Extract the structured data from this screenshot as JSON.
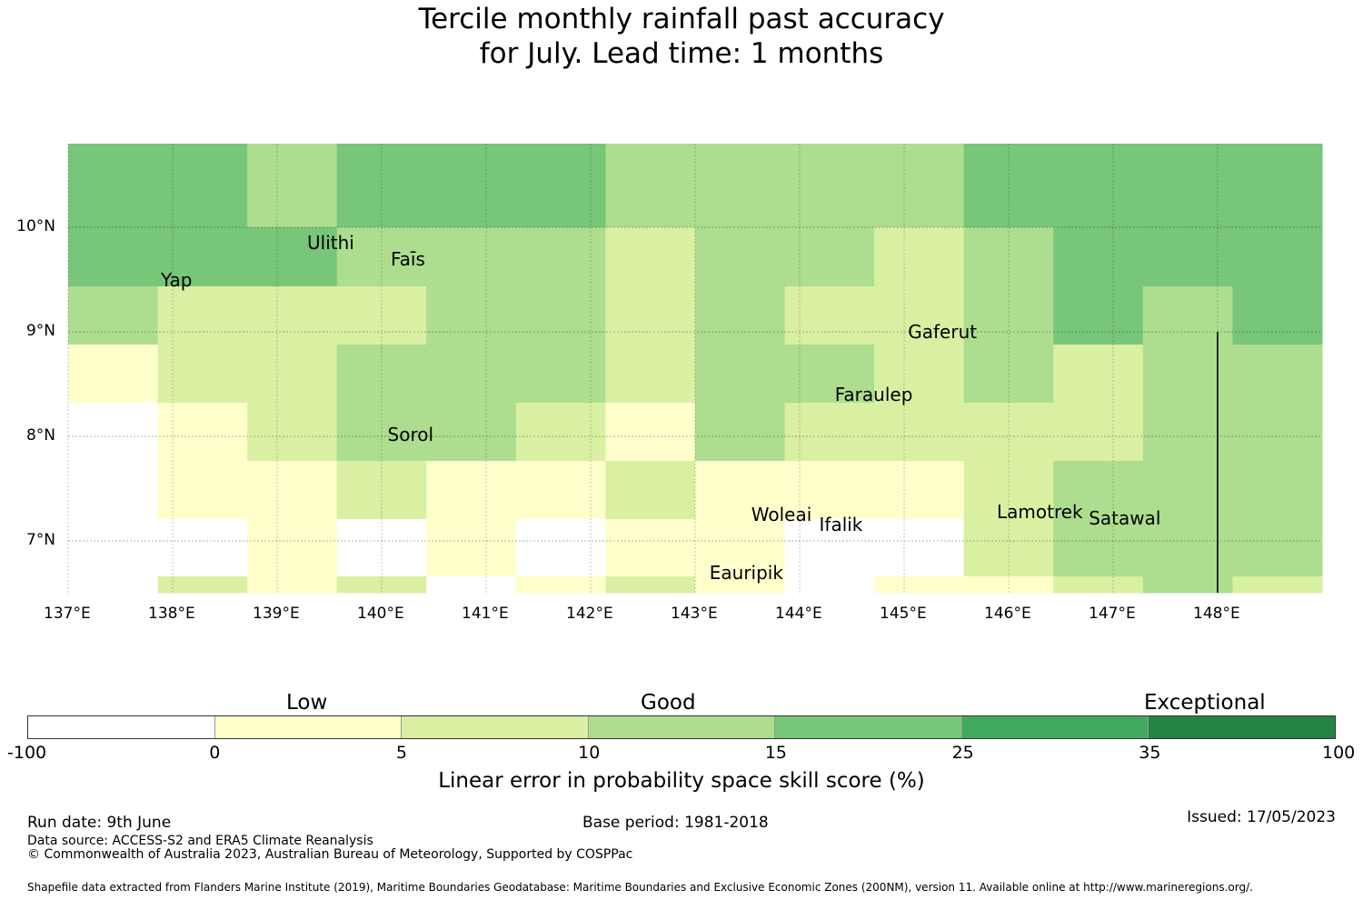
{
  "title": {
    "line1": "Tercile monthly rainfall past accuracy",
    "line2": "for July. Lead time: 1 months"
  },
  "map": {
    "lon_range": [
      137,
      149
    ],
    "lat_range": [
      6.5,
      10.8
    ],
    "lon_ticks": [
      "137°E",
      "138°E",
      "139°E",
      "140°E",
      "141°E",
      "142°E",
      "143°E",
      "144°E",
      "145°E",
      "146°E",
      "147°E",
      "148°E"
    ],
    "lat_ticks": [
      "10°N",
      "9°N",
      "8°N",
      "7°N"
    ],
    "grid_cols": 14,
    "grid_rows": 8,
    "cells": [
      [
        4,
        4,
        3,
        4,
        4,
        4,
        3,
        3,
        3,
        3,
        4,
        4,
        4,
        4
      ],
      [
        4,
        4,
        4,
        3,
        3,
        3,
        2,
        3,
        3,
        2,
        3,
        4,
        4,
        4
      ],
      [
        3,
        2,
        2,
        2,
        3,
        3,
        2,
        3,
        2,
        2,
        3,
        4,
        3,
        4
      ],
      [
        1,
        2,
        2,
        3,
        3,
        3,
        2,
        3,
        3,
        2,
        3,
        2,
        3,
        3
      ],
      [
        0,
        1,
        2,
        3,
        3,
        2,
        1,
        3,
        2,
        2,
        2,
        2,
        3,
        3
      ],
      [
        0,
        1,
        1,
        2,
        1,
        1,
        2,
        1,
        1,
        1,
        2,
        3,
        3,
        3
      ],
      [
        0,
        0,
        1,
        0,
        1,
        0,
        1,
        1,
        0,
        0,
        2,
        3,
        3,
        3
      ],
      [
        0,
        2,
        1,
        2,
        0,
        1,
        2,
        1,
        0,
        1,
        1,
        2,
        3,
        2
      ]
    ],
    "places": [
      {
        "name": "Yap",
        "lon": 138.2,
        "lat": 9.5
      },
      {
        "name": "Ulithi",
        "lon": 139.6,
        "lat": 9.85
      },
      {
        "name": "Faīs",
        "lon": 140.4,
        "lat": 9.7
      },
      {
        "name": "Gaferut",
        "lon": 145.35,
        "lat": 9.0
      },
      {
        "name": "Faraulep",
        "lon": 144.65,
        "lat": 8.4
      },
      {
        "name": "Sorol",
        "lon": 140.37,
        "lat": 8.02
      },
      {
        "name": "Woleai",
        "lon": 143.85,
        "lat": 7.25
      },
      {
        "name": "Ifalik",
        "lon": 144.5,
        "lat": 7.16
      },
      {
        "name": "Lamotrek",
        "lon": 146.2,
        "lat": 7.28
      },
      {
        "name": "Satawal",
        "lon": 147.08,
        "lat": 7.22
      },
      {
        "name": "Eauripik",
        "lon": 143.45,
        "lat": 6.7
      }
    ],
    "boundary_line": {
      "lon": 148.0,
      "lat_from": 9.0,
      "lat_to": 6.5
    }
  },
  "legend": {
    "categories": [
      "Low",
      "Good",
      "Exceptional"
    ],
    "ticks": [
      "-100",
      "0",
      "5",
      "10",
      "15",
      "25",
      "35",
      "100"
    ],
    "colors": [
      "#ffffff",
      "#ffffcc",
      "#d9f0a3",
      "#addd8e",
      "#78c679",
      "#41ab5d",
      "#238443"
    ],
    "label": "Linear error in probability space skill score (%)"
  },
  "footer": {
    "run_date": "Run date: 9th June",
    "base_period": "Base period: 1981-2018",
    "issued": "Issued: 17/05/2023",
    "data_source": "Data source: ACCESS-S2 and ERA5 Climate Reanalysis",
    "copyright": "© Commonwealth of Australia 2023, Australian Bureau of Meteorology, Supported by COSPPac",
    "shapefile": "Shapefile data extracted from Flanders Marine Institute (2019), Maritime Boundaries Geodatabase: Maritime Boundaries and Exclusive Economic Zones (200NM), version 11. Available online at http://www.marineregions.org/."
  }
}
